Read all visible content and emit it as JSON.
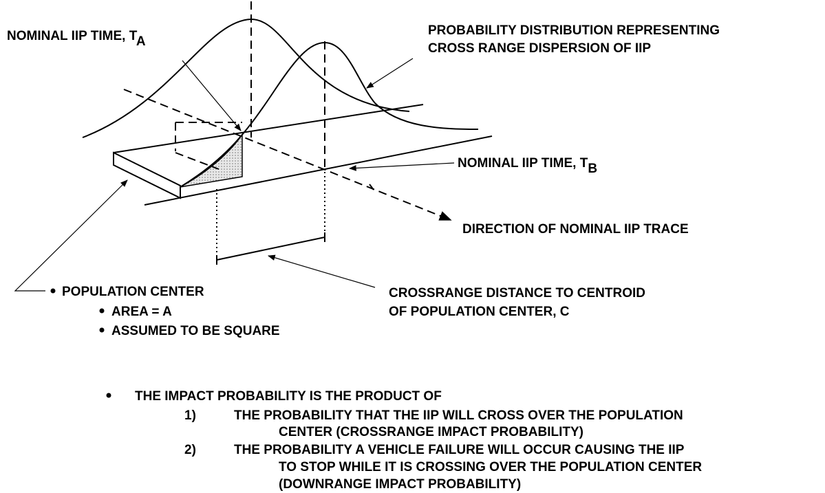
{
  "labels": {
    "nominal_time_a": {
      "text": "NOMINAL IIP TIME, T",
      "sub": "A"
    },
    "probability_distribution": [
      "PROBABILITY DISTRIBUTION REPRESENTING",
      "CROSS RANGE DISPERSION OF IIP"
    ],
    "nominal_time_b": {
      "text": "NOMINAL IIP TIME, T",
      "sub": "B"
    },
    "direction": "DIRECTION OF NOMINAL IIP TRACE",
    "crossrange_distance": [
      "CROSSRANGE DISTANCE TO CENTROID",
      "OF POPULATION CENTER, C"
    ],
    "population_center": {
      "title": "POPULATION CENTER",
      "items": [
        "AREA = A",
        "ASSUMED TO BE SQUARE"
      ]
    }
  },
  "summary": {
    "lead": "THE IMPACT PROBABILITY IS THE PRODUCT OF",
    "items": [
      {
        "number": "1)",
        "lines": [
          "THE PROBABILITY THAT THE IIP WILL CROSS OVER THE POPULATION",
          "CENTER (CROSSRANGE IMPACT PROBABILITY)"
        ]
      },
      {
        "number": "2)",
        "lines": [
          "THE PROBABILITY A VEHICLE FAILURE WILL OCCUR CAUSING THE IIP",
          "TO STOP WHILE IT IS CROSSING OVER THE POPULATION CENTER",
          "(DOWNRANGE IMPACT PROBABILITY)"
        ]
      }
    ]
  }
}
